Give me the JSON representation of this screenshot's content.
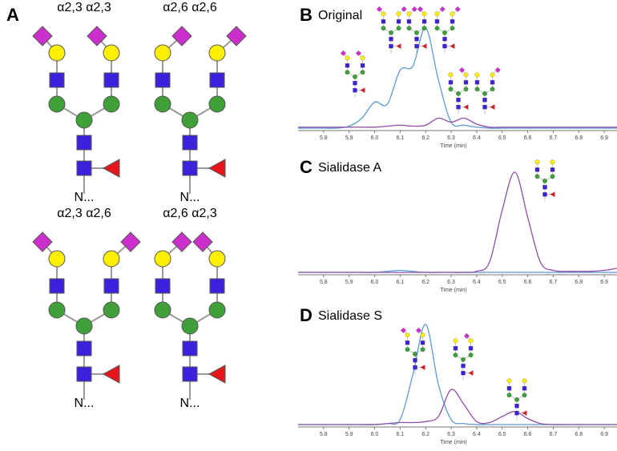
{
  "panel_a": {
    "letter": "A",
    "glycans": [
      {
        "linkage": "α2,3 α2,3",
        "reducing_end": "N..."
      },
      {
        "linkage": "α2,6 α2,6",
        "reducing_end": "N..."
      },
      {
        "linkage": "α2,3 α2,6",
        "reducing_end": "N..."
      },
      {
        "linkage": "α2,6 α2,3",
        "reducing_end": "N..."
      }
    ]
  },
  "chart_data": [
    {
      "type": "line",
      "panel_label": "B",
      "title": "Original",
      "xlabel": "Time (min)",
      "x": [
        5.7,
        5.75,
        5.8,
        5.85,
        5.9,
        5.95,
        6.0,
        6.05,
        6.1,
        6.15,
        6.2,
        6.25,
        6.3,
        6.35,
        6.4,
        6.45,
        6.5,
        6.55,
        6.6,
        6.65,
        6.7,
        6.75,
        6.8,
        6.85,
        6.9,
        6.95
      ],
      "xlim": [
        5.7,
        6.95
      ],
      "ylim": [
        0,
        100
      ],
      "xticks": [
        5.8,
        5.9,
        {
          "value": 6,
          "label": "6.0"
        },
        6.1,
        6.2,
        6.3,
        6.4,
        6.5,
        6.6,
        6.7,
        6.8,
        6.9
      ],
      "series": [
        {
          "color": "#5a9bd4",
          "values": [
            0,
            0,
            0,
            0,
            2,
            10,
            26,
            24,
            58,
            62,
            100,
            48,
            6,
            3,
            1,
            0,
            0,
            0,
            0,
            0,
            0,
            0,
            0,
            0,
            0,
            0
          ]
        },
        {
          "color": "#8e4fa8",
          "values": [
            1,
            1,
            1,
            1,
            1,
            1,
            1,
            2,
            3,
            2,
            3,
            10,
            6,
            10,
            4,
            1,
            1,
            1,
            1,
            1,
            1,
            1,
            1,
            1,
            1,
            1
          ]
        }
      ]
    },
    {
      "type": "line",
      "panel_label": "C",
      "title": "Sialidase A",
      "xlabel": "Time (min)",
      "x": [
        5.7,
        5.75,
        5.8,
        5.85,
        5.9,
        5.95,
        6.0,
        6.05,
        6.1,
        6.15,
        6.2,
        6.25,
        6.3,
        6.35,
        6.4,
        6.45,
        6.5,
        6.55,
        6.6,
        6.65,
        6.7,
        6.75,
        6.8,
        6.85,
        6.9,
        6.95
      ],
      "xlim": [
        5.7,
        6.95
      ],
      "ylim": [
        0,
        100
      ],
      "xticks": [
        5.8,
        5.9,
        {
          "value": 6,
          "label": "6.0"
        },
        6.1,
        6.2,
        6.3,
        6.4,
        6.5,
        6.6,
        6.7,
        6.8,
        6.9
      ],
      "series": [
        {
          "color": "#5a9bd4",
          "values": [
            0,
            0,
            0,
            0,
            0,
            0,
            0,
            1,
            2,
            1,
            0,
            0,
            0,
            0,
            0,
            0,
            0,
            0,
            0,
            0,
            0,
            0,
            0,
            0,
            0,
            0
          ]
        },
        {
          "color": "#8e4fa8",
          "values": [
            0,
            0,
            0,
            0,
            0,
            0,
            0,
            0,
            0,
            0,
            0,
            0,
            0,
            0,
            1,
            10,
            62,
            100,
            55,
            10,
            2,
            1,
            1,
            1,
            2,
            4
          ]
        }
      ]
    },
    {
      "type": "line",
      "panel_label": "D",
      "title": "Sialidase S",
      "xlabel": "Time (min)",
      "x": [
        5.7,
        5.75,
        5.8,
        5.85,
        5.9,
        5.95,
        6.0,
        6.05,
        6.1,
        6.15,
        6.2,
        6.25,
        6.3,
        6.35,
        6.4,
        6.45,
        6.5,
        6.55,
        6.6,
        6.65,
        6.7,
        6.75,
        6.8,
        6.85,
        6.9,
        6.95
      ],
      "xlim": [
        5.7,
        6.95
      ],
      "ylim": [
        0,
        100
      ],
      "xticks": [
        5.8,
        5.9,
        {
          "value": 6,
          "label": "6.0"
        },
        6.1,
        6.2,
        6.3,
        6.4,
        6.5,
        6.6,
        6.7,
        6.8,
        6.9
      ],
      "series": [
        {
          "color": "#5a9bd4",
          "values": [
            0,
            0,
            0,
            0,
            0,
            0,
            0,
            1,
            5,
            50,
            100,
            40,
            5,
            1,
            0,
            0,
            0,
            0,
            0,
            0,
            0,
            0,
            0,
            0,
            0,
            0
          ]
        },
        {
          "color": "#8e4fa8",
          "values": [
            0,
            0,
            0,
            0,
            0,
            0,
            0,
            1,
            2,
            2,
            3,
            8,
            35,
            20,
            3,
            2,
            8,
            13,
            6,
            1,
            0,
            0,
            0,
            0,
            0,
            0
          ]
        }
      ]
    }
  ]
}
